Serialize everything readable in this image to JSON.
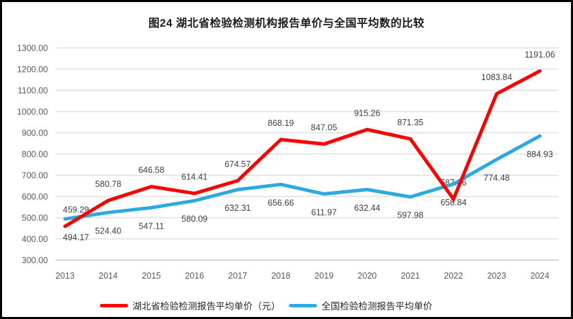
{
  "title": "图24 湖北省检验检测机构报告单价与全国平均数的比较",
  "chart_data": {
    "type": "line",
    "title": "图24 湖北省检验检测机构报告单价与全国平均数的比较",
    "categories": [
      "2013",
      "2014",
      "2015",
      "2016",
      "2017",
      "2018",
      "2019",
      "2020",
      "2021",
      "2022",
      "2023",
      "2024"
    ],
    "series": [
      {
        "name": "湖北省检验检测报告平均单价（元）",
        "color": "#FE0000",
        "label_position": "above",
        "values": [
          459.29,
          580.78,
          646.58,
          614.41,
          674.57,
          868.19,
          847.05,
          915.26,
          871.35,
          587.46,
          1083.84,
          1191.06
        ]
      },
      {
        "name": "全国检验检测报告平均单价",
        "color": "#2BAAE2",
        "label_position": "below",
        "values": [
          494.17,
          524.4,
          547.11,
          580.09,
          632.31,
          656.66,
          611.97,
          632.44,
          597.98,
          658.84,
          774.48,
          884.93
        ]
      }
    ],
    "y_axis": {
      "min": 300,
      "max": 1300,
      "step": 100,
      "tick_format": "two-decimals"
    },
    "x_axis": {
      "label": ""
    },
    "grid": true,
    "gridline_color": "#D9D9D9",
    "baseline_color": "#BFBFBF",
    "axis_text_color": "#595959",
    "data_label_color": "#404040",
    "legend_position": "bottom",
    "data_labels_shown": true
  }
}
